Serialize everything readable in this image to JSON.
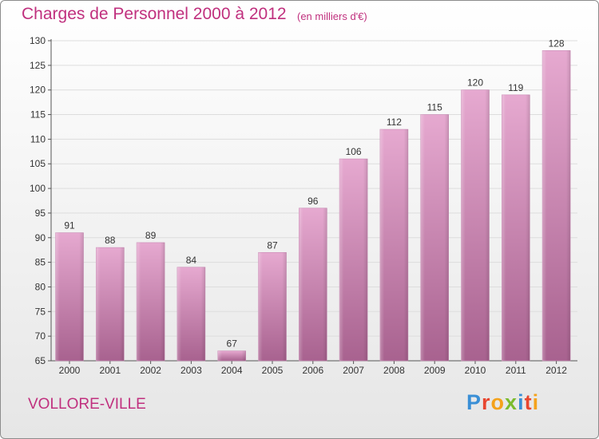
{
  "header": {
    "title": "Charges de Personnel 2000 à 2012",
    "subtitle": "(en milliers d'€)"
  },
  "footer": {
    "city": "VOLLORE-VILLE",
    "logo_letters": [
      {
        "ch": "P",
        "color": "#3a8fd6"
      },
      {
        "ch": "r",
        "color": "#e8462f"
      },
      {
        "ch": "o",
        "color": "#f4a21b"
      },
      {
        "ch": "x",
        "color": "#7bbb2d"
      },
      {
        "ch": "i",
        "color": "#3a8fd6"
      },
      {
        "ch": "t",
        "color": "#e8462f"
      },
      {
        "ch": "i",
        "color": "#f4a21b"
      }
    ]
  },
  "colors": {
    "title": "#c0307e",
    "bar_light": "#e6a9d0",
    "bar_dark": "#a8628f",
    "axis": "#555555",
    "grid": "#dddddd"
  },
  "chart_data": {
    "type": "bar",
    "title": "Charges de Personnel 2000 à 2012",
    "subtitle": "(en milliers d'€)",
    "categories": [
      "2000",
      "2001",
      "2002",
      "2003",
      "2004",
      "2005",
      "2006",
      "2007",
      "2008",
      "2009",
      "2010",
      "2011",
      "2012"
    ],
    "values": [
      91,
      88,
      89,
      84,
      67,
      87,
      96,
      106,
      112,
      115,
      120,
      119,
      128
    ],
    "ylim": [
      65,
      130
    ],
    "yticks": [
      65,
      70,
      75,
      80,
      85,
      90,
      95,
      100,
      105,
      110,
      115,
      120,
      125,
      130
    ],
    "grid": true,
    "legend": "none",
    "data_labels": true
  }
}
